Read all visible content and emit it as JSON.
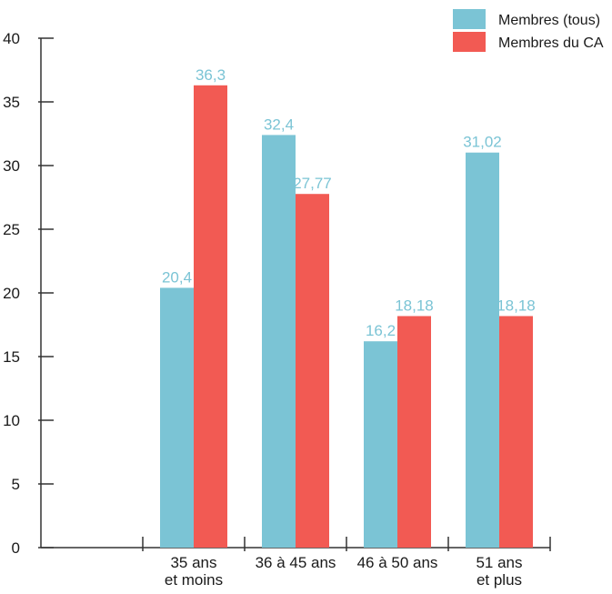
{
  "chart_data": {
    "type": "bar",
    "categories": [
      [
        "35 ans",
        "et moins"
      ],
      [
        "36 à 45 ans"
      ],
      [
        "46 à 50 ans"
      ],
      [
        "51 ans",
        "et plus"
      ]
    ],
    "series": [
      {
        "name": "Membres (tous)",
        "values": [
          20.4,
          32.4,
          16.2,
          31.02
        ],
        "labels": [
          "20,4",
          "32,4",
          "16,2",
          "31,02"
        ],
        "color": "#7bc4d5"
      },
      {
        "name": "Membres du CA",
        "values": [
          36.3,
          27.77,
          18.18,
          18.18
        ],
        "labels": [
          "36,3",
          "27,77",
          "18,18",
          "18,18"
        ],
        "color": "#f25a53"
      }
    ],
    "yticks": [
      "0",
      "5",
      "10",
      "15",
      "20",
      "25",
      "30",
      "35",
      "40"
    ],
    "ylim": [
      0,
      40
    ],
    "grid": false,
    "legend_position": "top-right",
    "leading_empty_category": true
  }
}
